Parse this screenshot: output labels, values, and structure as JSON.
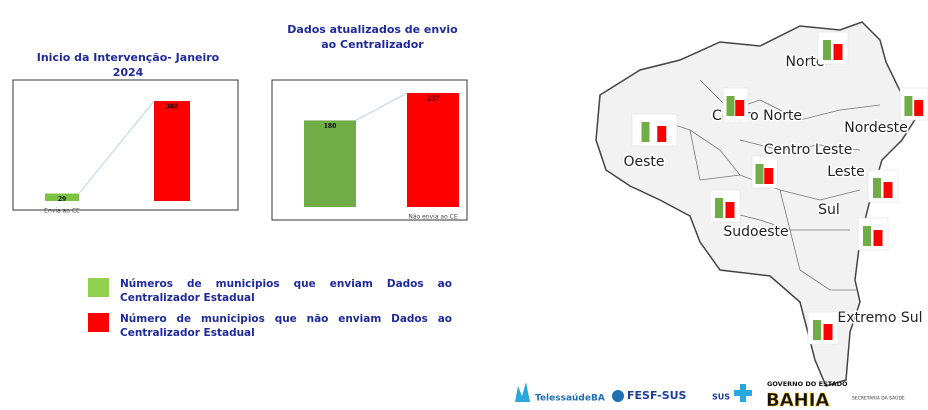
{
  "chart_data": [
    {
      "type": "bar",
      "title": "Inicio da Intervenção- Janeiro 2024",
      "categories": [
        "Envia ao CE",
        null
      ],
      "values": [
        29,
        388
      ],
      "colors": [
        "#7dc243",
        "#ff0000"
      ],
      "connector_color": "#b8d4ec"
    },
    {
      "type": "bar",
      "title": "Dados atualizados  de envio ao Centralizador",
      "categories": [
        null,
        "Não envia ao CE"
      ],
      "values": [
        180,
        237
      ],
      "colors": [
        "#70ad47",
        "#ff0000"
      ],
      "connector_color": "#b8d4ec"
    }
  ],
  "legend": [
    {
      "label": "Números de municipios que enviam Dados ao Centralizador Estadual",
      "color": "#92d050"
    },
    {
      "label": "Número de municipios que não enviam Dados ao Centralizador Estadual",
      "color": "#ff0000"
    }
  ],
  "map": {
    "regions": [
      "Norte",
      "Centro Norte",
      "Nordeste",
      "Oeste",
      "Centro Leste",
      "Leste",
      "Sul",
      "Sudoeste",
      "Extremo Sul"
    ]
  },
  "logos": {
    "telessaude": "TelessaúdeBA",
    "fesf": "FESF-SUS",
    "sus": "SUS",
    "governo": "GOVERNO DO ESTADO",
    "bahia": "BAHIA",
    "secretaria": "SECRETARIA DA SAÚDE"
  }
}
